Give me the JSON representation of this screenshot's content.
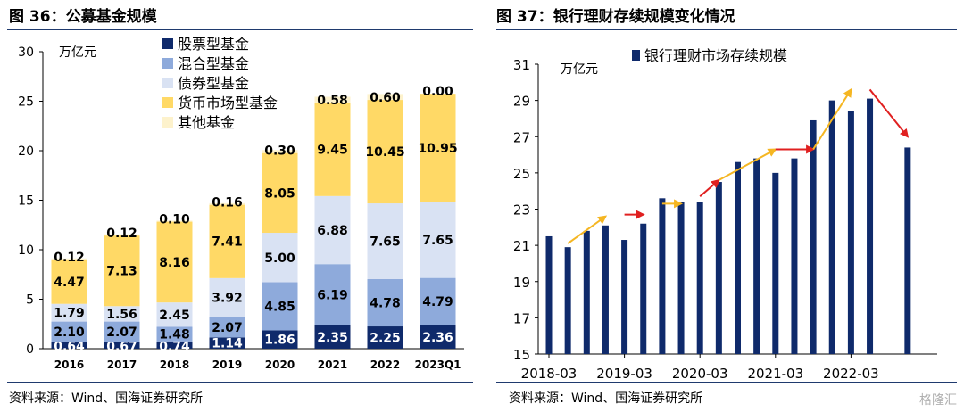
{
  "figures": [
    {
      "title": "图 36：公募基金规模",
      "source": "资料来源：Wind、国海证券研究所"
    },
    {
      "title": "图 37：银行理财存续规模变化情况",
      "source": "资料来源：Wind、国海证券研究所"
    }
  ],
  "watermark": "格隆汇",
  "colors": {
    "navy": "#0f2a6b",
    "mid_blue": "#8eaadb",
    "light_blue": "#d9e2f3",
    "yellow": "#ffd966",
    "cream": "#fdf2cc",
    "arrow_yellow": "#f5b622",
    "arrow_red": "#e02020",
    "rule": "#1f3a6e"
  },
  "chart_data": [
    {
      "type": "bar",
      "stacked": true,
      "unit_label": "万亿元",
      "ylim": [
        0,
        30
      ],
      "yticks": [
        0,
        5,
        10,
        15,
        20,
        25,
        30
      ],
      "categories": [
        "2016",
        "2017",
        "2018",
        "2019",
        "2020",
        "2021",
        "2022",
        "2023Q1"
      ],
      "legend_position": "top-right",
      "series": [
        {
          "name": "股票型基金",
          "color": "#0f2a6b",
          "values": [
            0.64,
            0.67,
            0.74,
            1.14,
            1.86,
            2.35,
            2.25,
            2.36
          ]
        },
        {
          "name": "混合型基金",
          "color": "#8eaadb",
          "values": [
            2.1,
            2.07,
            1.48,
            2.07,
            4.85,
            6.19,
            4.78,
            4.79
          ]
        },
        {
          "name": "债券型基金",
          "color": "#d9e2f3",
          "values": [
            1.79,
            1.56,
            2.45,
            3.92,
            5.0,
            6.88,
            7.65,
            7.65
          ]
        },
        {
          "name": "货币市场型基金",
          "color": "#ffd966",
          "values": [
            4.47,
            7.13,
            8.16,
            7.41,
            8.05,
            9.45,
            10.45,
            10.95
          ]
        },
        {
          "name": "其他基金",
          "color": "#fdf2cc",
          "values": [
            0.12,
            0.12,
            0.1,
            0.16,
            0.3,
            0.58,
            0.6,
            0.0
          ]
        }
      ]
    },
    {
      "type": "bar",
      "unit_label": "万亿元",
      "ylim": [
        15,
        31
      ],
      "yticks": [
        15,
        17,
        19,
        21,
        23,
        25,
        27,
        29,
        31
      ],
      "x_tick_labels": [
        "2018-03",
        "2019-03",
        "2020-03",
        "2021-03",
        "2022-03"
      ],
      "legend_position": "top",
      "series": [
        {
          "name": "银行理财市场存续规模",
          "color": "#0f2a6b",
          "values": [
            21.5,
            20.9,
            21.8,
            22.1,
            21.3,
            22.2,
            23.6,
            23.4,
            23.4,
            24.5,
            25.6,
            25.8,
            25.0,
            25.8,
            27.9,
            29.0,
            28.4,
            29.1,
            26.4
          ]
        }
      ],
      "x_dates": [
        "2018-03",
        "2018-06",
        "2018-09",
        "2018-12",
        "2019-03",
        "2019-06",
        "2019-09",
        "2019-12",
        "2020-03",
        "2020-06",
        "2020-09",
        "2020-12",
        "2021-03",
        "2021-06",
        "2021-09",
        "2021-12",
        "2022-03",
        "2022-06",
        "2022-12"
      ],
      "trend_arrows": [
        {
          "color": "yellow",
          "from": [
            "2018-06",
            21.1
          ],
          "to": [
            "2018-12",
            22.6
          ]
        },
        {
          "color": "red",
          "from": [
            "2019-03",
            22.7
          ],
          "to": [
            "2019-06",
            22.7
          ]
        },
        {
          "color": "yellow",
          "from": [
            "2019-09",
            23.3
          ],
          "to": [
            "2019-12",
            23.3
          ]
        },
        {
          "color": "red",
          "from": [
            "2020-03",
            23.7
          ],
          "to": [
            "2020-06",
            24.6
          ]
        },
        {
          "color": "yellow",
          "from": [
            "2020-06",
            24.6
          ],
          "to": [
            "2021-03",
            26.3
          ]
        },
        {
          "color": "red",
          "from": [
            "2021-03",
            26.3
          ],
          "to": [
            "2021-09",
            26.3
          ]
        },
        {
          "color": "yellow",
          "from": [
            "2021-09",
            26.3
          ],
          "to": [
            "2022-03",
            29.6
          ]
        },
        {
          "color": "red",
          "from": [
            "2022-06",
            29.6
          ],
          "to": [
            "2022-12",
            27.0
          ]
        }
      ]
    }
  ]
}
